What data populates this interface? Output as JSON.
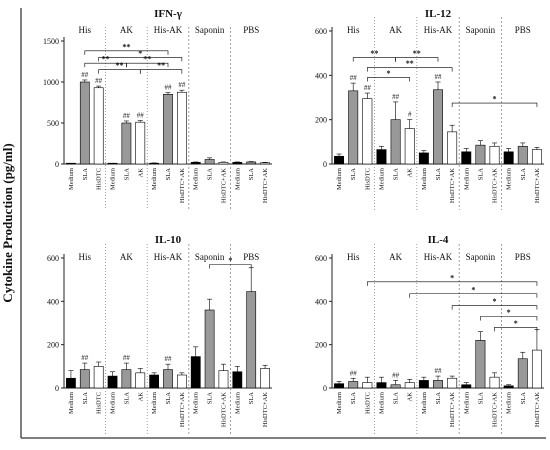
{
  "figure": {
    "ylabel": "Cytokine Production (pg/ml)",
    "colors": {
      "medium": "#000000",
      "sla": "#999999",
      "second": "#ffffff",
      "axis": "#222222",
      "divider": "#888888",
      "frame": "#555555"
    }
  },
  "chart_data": [
    {
      "type": "bar",
      "title": "IFN-γ",
      "ylim": [
        0,
        1500
      ],
      "yticks": [
        "0",
        "500",
        "1000",
        "1500"
      ],
      "groups": [
        {
          "name": "His",
          "categories": [
            "Medium",
            "SLA",
            "HisDTC"
          ],
          "values": [
            5,
            1000,
            930
          ],
          "errors": [
            2,
            25,
            20
          ],
          "marks": [
            "",
            "##",
            "##"
          ]
        },
        {
          "name": "AK",
          "categories": [
            "Medium",
            "SLA",
            "AK"
          ],
          "values": [
            5,
            500,
            510
          ],
          "errors": [
            2,
            25,
            20
          ],
          "marks": [
            "",
            "##",
            "##"
          ]
        },
        {
          "name": "His-AK",
          "categories": [
            "Medium",
            "SLA",
            "HisDTC+AK"
          ],
          "values": [
            10,
            850,
            875
          ],
          "errors": [
            3,
            20,
            25
          ],
          "marks": [
            "",
            "##",
            "##"
          ]
        },
        {
          "name": "Saponin",
          "categories": [
            "Medium",
            "SLA",
            "HisDTC+AK"
          ],
          "values": [
            20,
            55,
            20
          ],
          "errors": [
            5,
            20,
            5
          ],
          "marks": [
            "",
            "",
            ""
          ]
        },
        {
          "name": "PBS",
          "categories": [
            "Medium",
            "SLA",
            "HisDTC+AK"
          ],
          "values": [
            20,
            25,
            15
          ],
          "errors": [
            5,
            5,
            5
          ],
          "marks": [
            "",
            "",
            ""
          ]
        }
      ],
      "brackets": [
        {
          "from": [
            0,
            1
          ],
          "to": [
            2,
            1
          ],
          "y": 1380,
          "label": "**"
        },
        {
          "from": [
            0,
            2
          ],
          "to": [
            2,
            2
          ],
          "y": 1300,
          "label": "*"
        },
        {
          "from": [
            0,
            1
          ],
          "to": [
            1,
            1
          ],
          "y": 1230,
          "label": "**"
        },
        {
          "from": [
            1,
            1
          ],
          "to": [
            2,
            1
          ],
          "y": 1230,
          "label": "**"
        },
        {
          "from": [
            0,
            2
          ],
          "to": [
            1,
            2
          ],
          "y": 1150,
          "label": "**"
        },
        {
          "from": [
            1,
            2
          ],
          "to": [
            2,
            2
          ],
          "y": 1150,
          "label": "**"
        }
      ]
    },
    {
      "type": "bar",
      "title": "IL-12",
      "ylim": [
        0,
        600
      ],
      "yticks": [
        "0",
        "200",
        "400",
        "600"
      ],
      "groups": [
        {
          "name": "His",
          "categories": [
            "Medium",
            "SLA",
            "HisDTC"
          ],
          "values": [
            35,
            330,
            295
          ],
          "errors": [
            10,
            35,
            25
          ],
          "marks": [
            "",
            "##",
            "##"
          ]
        },
        {
          "name": "AK",
          "categories": [
            "Medium",
            "SLA",
            "AK"
          ],
          "values": [
            65,
            200,
            160
          ],
          "errors": [
            15,
            80,
            40
          ],
          "marks": [
            "",
            "##",
            "#"
          ]
        },
        {
          "name": "His-AK",
          "categories": [
            "Medium",
            "SLA",
            "HisDTC+AK"
          ],
          "values": [
            50,
            335,
            145
          ],
          "errors": [
            10,
            35,
            30
          ],
          "marks": [
            "",
            "##",
            ""
          ]
        },
        {
          "name": "Saponin",
          "categories": [
            "Medium",
            "SLA",
            "HisDTC+AK"
          ],
          "values": [
            55,
            85,
            80
          ],
          "errors": [
            15,
            20,
            15
          ],
          "marks": [
            "",
            "",
            ""
          ]
        },
        {
          "name": "PBS",
          "categories": [
            "Medium",
            "SLA",
            "HisDTC+AK"
          ],
          "values": [
            55,
            80,
            65
          ],
          "errors": [
            15,
            15,
            10
          ],
          "marks": [
            "",
            "",
            ""
          ]
        }
      ],
      "brackets": [
        {
          "from": [
            0,
            1
          ],
          "to": [
            1,
            1
          ],
          "y": 480,
          "label": "**"
        },
        {
          "from": [
            1,
            1
          ],
          "to": [
            2,
            1
          ],
          "y": 480,
          "label": "**"
        },
        {
          "from": [
            0,
            2
          ],
          "to": [
            2,
            2
          ],
          "y": 435,
          "label": "**"
        },
        {
          "from": [
            0,
            2
          ],
          "to": [
            1,
            2
          ],
          "y": 390,
          "label": "*"
        },
        {
          "from": [
            2,
            2
          ],
          "to": [
            4,
            2
          ],
          "y": 275,
          "label": "*"
        }
      ]
    },
    {
      "type": "bar",
      "title": "IL-10",
      "ylim": [
        0,
        600
      ],
      "yticks": [
        "0",
        "200",
        "400",
        "600"
      ],
      "groups": [
        {
          "name": "His",
          "categories": [
            "Medium",
            "SLA",
            "HisDTC"
          ],
          "values": [
            45,
            85,
            100
          ],
          "errors": [
            35,
            30,
            20
          ],
          "marks": [
            "",
            "##",
            ""
          ]
        },
        {
          "name": "AK",
          "categories": [
            "Medium",
            "SLA",
            "AK"
          ],
          "values": [
            55,
            85,
            70
          ],
          "errors": [
            20,
            30,
            20
          ],
          "marks": [
            "",
            "##",
            ""
          ]
        },
        {
          "name": "His-AK",
          "categories": [
            "Medium",
            "SLA",
            "HisDTC+AK"
          ],
          "values": [
            60,
            85,
            60
          ],
          "errors": [
            10,
            25,
            10
          ],
          "marks": [
            "",
            "##",
            ""
          ]
        },
        {
          "name": "Saponin",
          "categories": [
            "Medium",
            "SLA",
            "HisDTC+AK"
          ],
          "values": [
            145,
            360,
            80
          ],
          "errors": [
            45,
            50,
            30
          ],
          "marks": [
            "",
            "",
            ""
          ]
        },
        {
          "name": "PBS",
          "categories": [
            "Medium",
            "SLA",
            "HisDTC+AK"
          ],
          "values": [
            75,
            445,
            90
          ],
          "errors": [
            25,
            110,
            15
          ],
          "marks": [
            "",
            "",
            ""
          ]
        }
      ],
      "brackets": [
        {
          "from": [
            3,
            1
          ],
          "to": [
            4,
            1
          ],
          "y": 570,
          "label": "*"
        }
      ]
    },
    {
      "type": "bar",
      "title": "IL-4",
      "ylim": [
        0,
        600
      ],
      "yticks": [
        "0",
        "200",
        "400",
        "600"
      ],
      "groups": [
        {
          "name": "His",
          "categories": [
            "Medium",
            "SLA",
            "HisDTC"
          ],
          "values": [
            20,
            30,
            25
          ],
          "errors": [
            10,
            15,
            25
          ],
          "marks": [
            "",
            "##",
            ""
          ]
        },
        {
          "name": "AK",
          "categories": [
            "Medium",
            "SLA",
            "AK"
          ],
          "values": [
            25,
            15,
            25
          ],
          "errors": [
            25,
            20,
            15
          ],
          "marks": [
            "",
            "##",
            ""
          ]
        },
        {
          "name": "His-AK",
          "categories": [
            "Medium",
            "SLA",
            "HisDTC+AK"
          ],
          "values": [
            35,
            35,
            45
          ],
          "errors": [
            15,
            20,
            10
          ],
          "marks": [
            "",
            "##",
            ""
          ]
        },
        {
          "name": "Saponin",
          "categories": [
            "Medium",
            "SLA",
            "HisDTC+AK"
          ],
          "values": [
            15,
            220,
            50
          ],
          "errors": [
            10,
            40,
            20
          ],
          "marks": [
            "",
            "",
            ""
          ]
        },
        {
          "name": "PBS",
          "categories": [
            "Medium",
            "SLA",
            "HisDTC+AK"
          ],
          "values": [
            10,
            135,
            175
          ],
          "errors": [
            5,
            30,
            95
          ],
          "marks": [
            "",
            "",
            ""
          ]
        }
      ],
      "brackets": [
        {
          "from": [
            0,
            2
          ],
          "to": [
            4,
            2
          ],
          "y": 490,
          "label": "*"
        },
        {
          "from": [
            1,
            2
          ],
          "to": [
            4,
            2
          ],
          "y": 435,
          "label": "*"
        },
        {
          "from": [
            2,
            2
          ],
          "to": [
            4,
            2
          ],
          "y": 380,
          "label": "*"
        },
        {
          "from": [
            3,
            1
          ],
          "to": [
            4,
            2
          ],
          "y": 330,
          "label": "*"
        },
        {
          "from": [
            3,
            2
          ],
          "to": [
            4,
            2
          ],
          "y": 280,
          "label": "*"
        }
      ]
    }
  ]
}
